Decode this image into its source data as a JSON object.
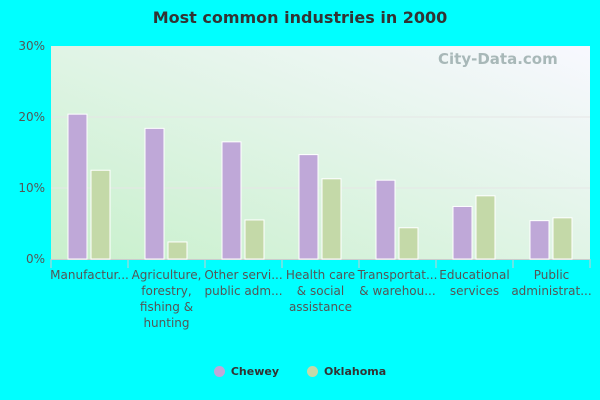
{
  "chart_data": {
    "type": "bar",
    "title": "Most common industries in 2000",
    "categories": [
      [
        "Manufactur..."
      ],
      [
        "Agriculture,",
        "forestry,",
        "fishing &",
        "hunting"
      ],
      [
        "Other servi...",
        "public adm..."
      ],
      [
        "Health care",
        "& social",
        "assistance"
      ],
      [
        "Transportat...",
        "& warehou..."
      ],
      [
        "Educational",
        "services"
      ],
      [
        "Public",
        "administrat..."
      ]
    ],
    "series": [
      {
        "name": "Chewey",
        "color": "#bfa8d8",
        "values": [
          20.4,
          18.4,
          16.5,
          14.7,
          11.1,
          7.4,
          5.4
        ]
      },
      {
        "name": "Oklahoma",
        "color": "#c4d9a8",
        "values": [
          12.5,
          2.4,
          5.5,
          11.3,
          4.4,
          8.9,
          5.8
        ]
      }
    ],
    "ylim": [
      0,
      30
    ],
    "yticks": [
      "0%",
      "10%",
      "20%",
      "30%"
    ],
    "grid": true,
    "legend": "bottom",
    "watermark": "City-Data.com"
  }
}
